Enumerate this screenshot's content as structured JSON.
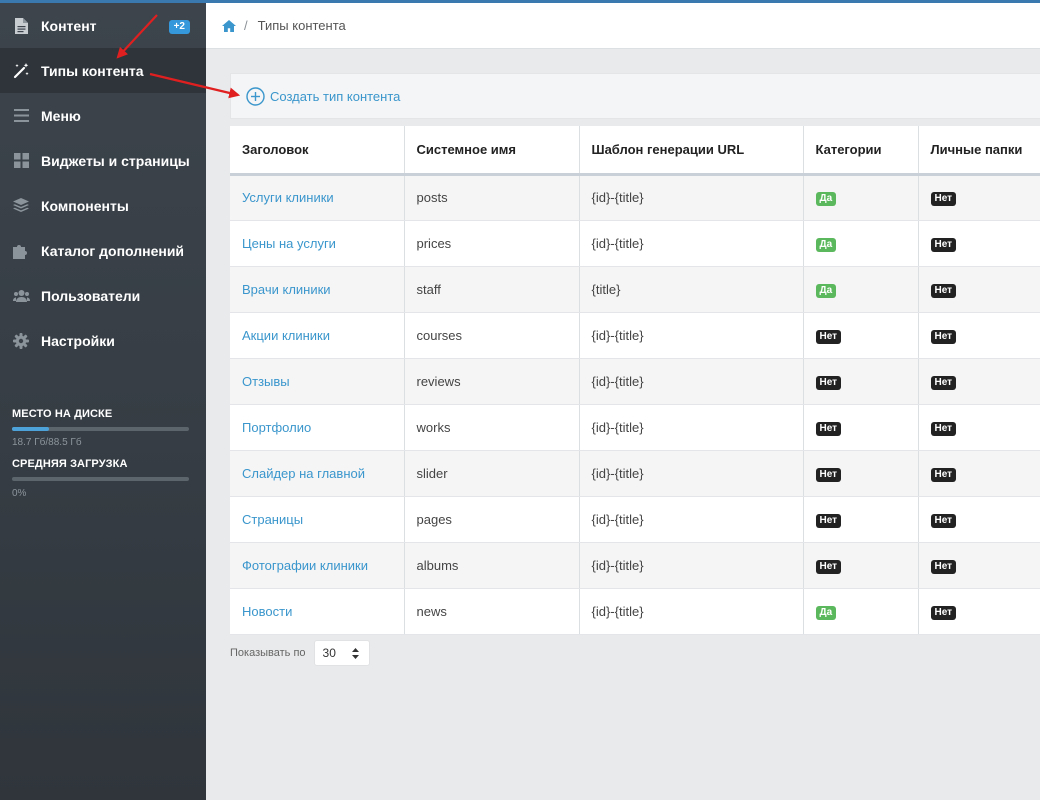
{
  "sidebar": {
    "items": [
      {
        "label": "Контент",
        "icon": "file-icon",
        "badge": "+2"
      },
      {
        "label": "Типы контента",
        "icon": "magic-wand-icon"
      },
      {
        "label": "Меню",
        "icon": "menu-icon"
      },
      {
        "label": "Виджеты и страницы",
        "icon": "grid-icon"
      },
      {
        "label": "Компоненты",
        "icon": "layers-icon"
      },
      {
        "label": "Каталог дополнений",
        "icon": "puzzle-icon"
      },
      {
        "label": "Пользователи",
        "icon": "users-icon"
      },
      {
        "label": "Настройки",
        "icon": "gear-icon"
      }
    ],
    "disk": {
      "title": "МЕСТО НА ДИСКЕ",
      "text": "18.7 Гб/88.5 Гб",
      "percent": 21
    },
    "load": {
      "title": "СРЕДНЯЯ ЗАГРУЗКА",
      "text": "0%",
      "percent": 0
    }
  },
  "breadcrumb": {
    "current": "Типы контента",
    "separator": "/"
  },
  "toolbar": {
    "create_label": "Создать тип контента"
  },
  "table": {
    "headers": [
      "Заголовок",
      "Системное имя",
      "Шаблон генерации URL",
      "Категории",
      "Личные папки"
    ],
    "rows": [
      {
        "title": "Услуги клиники",
        "name": "posts",
        "url": "{id}-{title}",
        "categories": "Да",
        "folders": "Нет"
      },
      {
        "title": "Цены на услуги",
        "name": "prices",
        "url": "{id}-{title}",
        "categories": "Да",
        "folders": "Нет"
      },
      {
        "title": "Врачи клиники",
        "name": "staff",
        "url": "{title}",
        "categories": "Да",
        "folders": "Нет"
      },
      {
        "title": "Акции клиники",
        "name": "courses",
        "url": "{id}-{title}",
        "categories": "Нет",
        "folders": "Нет"
      },
      {
        "title": "Отзывы",
        "name": "reviews",
        "url": "{id}-{title}",
        "categories": "Нет",
        "folders": "Нет"
      },
      {
        "title": "Портфолио",
        "name": "works",
        "url": "{id}-{title}",
        "categories": "Нет",
        "folders": "Нет"
      },
      {
        "title": "Слайдер на главной",
        "name": "slider",
        "url": "{id}-{title}",
        "categories": "Нет",
        "folders": "Нет"
      },
      {
        "title": "Страницы",
        "name": "pages",
        "url": "{id}-{title}",
        "categories": "Нет",
        "folders": "Нет"
      },
      {
        "title": "Фотографии клиники",
        "name": "albums",
        "url": "{id}-{title}",
        "categories": "Нет",
        "folders": "Нет"
      },
      {
        "title": "Новости",
        "name": "news",
        "url": "{id}-{title}",
        "categories": "Да",
        "folders": "Нет"
      }
    ]
  },
  "pager": {
    "label": "Показывать по",
    "per_page": "30"
  },
  "colors": {
    "sidebar_bg": "#3d444c",
    "link": "#3a96cc",
    "badge_yes": "#5cb85c",
    "badge_no": "#222222",
    "annotation_arrow": "#e02020"
  }
}
